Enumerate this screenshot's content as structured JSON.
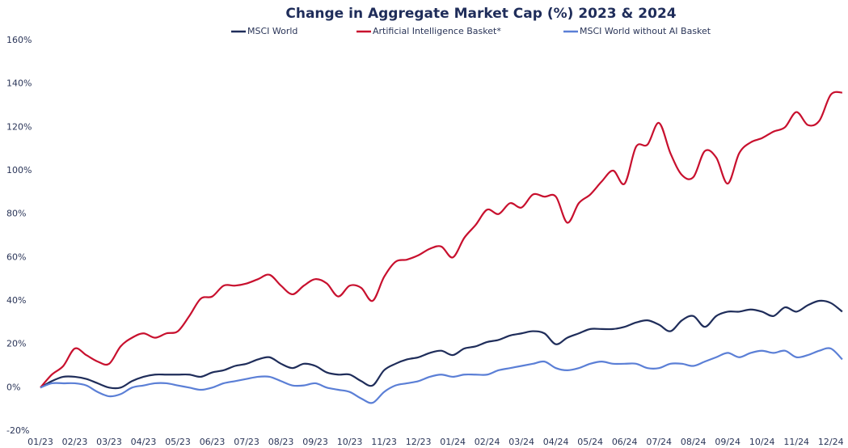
{
  "chart_data": {
    "type": "line",
    "title": "Change in Aggregate Market Cap (%) 2023 & 2024",
    "categories": [
      "01/23",
      null,
      null,
      "02/23",
      null,
      null,
      "03/23",
      null,
      null,
      "04/23",
      null,
      null,
      "05/23",
      null,
      null,
      "06/23",
      null,
      null,
      "07/23",
      null,
      null,
      "08/23",
      null,
      null,
      "09/23",
      null,
      null,
      "10/23",
      null,
      null,
      "11/23",
      null,
      null,
      "12/23",
      null,
      null,
      "01/24",
      null,
      null,
      "02/24",
      null,
      null,
      "03/24",
      null,
      null,
      "04/24",
      null,
      null,
      "05/24",
      null,
      null,
      "06/24",
      null,
      null,
      "07/24",
      null,
      null,
      "08/24",
      null,
      null,
      "09/24",
      null,
      null,
      "10/24",
      null,
      null,
      "11/24",
      null,
      null,
      "12/24",
      null
    ],
    "series": [
      {
        "name": "MSCI World",
        "color": "#1f2d5a",
        "values": [
          0,
          3,
          5,
          5,
          4,
          2,
          0,
          0,
          3,
          5,
          6,
          6,
          6,
          6,
          5,
          7,
          8,
          10,
          11,
          13,
          14,
          11,
          9,
          11,
          10,
          7,
          6,
          6,
          3,
          1,
          8,
          11,
          13,
          14,
          16,
          17,
          15,
          18,
          19,
          21,
          22,
          24,
          25,
          26,
          25,
          20,
          23,
          25,
          27,
          27,
          27,
          28,
          30,
          31,
          29,
          26,
          31,
          33,
          28,
          33,
          35,
          35,
          36,
          35,
          33,
          37,
          35,
          38,
          40,
          39,
          35
        ]
      },
      {
        "name": "Artificial Intelligence Basket*",
        "color": "#c8102e",
        "values": [
          0,
          6,
          10,
          18,
          15,
          12,
          11,
          19,
          23,
          25,
          23,
          25,
          26,
          33,
          41,
          42,
          47,
          47,
          48,
          50,
          52,
          47,
          43,
          47,
          50,
          48,
          42,
          47,
          46,
          40,
          51,
          58,
          59,
          61,
          64,
          65,
          60,
          69,
          75,
          82,
          80,
          85,
          83,
          89,
          88,
          88,
          76,
          85,
          89,
          95,
          100,
          94,
          111,
          112,
          122,
          108,
          98,
          97,
          109,
          106,
          94,
          108,
          113,
          115,
          118,
          120,
          127,
          121,
          123,
          135,
          136
        ]
      },
      {
        "name": "MSCI World without AI Basket",
        "color": "#5b7fd6",
        "values": [
          0,
          2,
          2,
          2,
          1,
          -2,
          -4,
          -3,
          0,
          1,
          2,
          2,
          1,
          0,
          -1,
          0,
          2,
          3,
          4,
          5,
          5,
          3,
          1,
          1,
          2,
          0,
          -1,
          -2,
          -5,
          -7,
          -2,
          1,
          2,
          3,
          5,
          6,
          5,
          6,
          6,
          6,
          8,
          9,
          10,
          11,
          12,
          9,
          8,
          9,
          11,
          12,
          11,
          11,
          11,
          9,
          9,
          11,
          11,
          10,
          12,
          14,
          16,
          14,
          16,
          17,
          16,
          17,
          14,
          15,
          17,
          18,
          13
        ]
      }
    ],
    "ylim": [
      -20,
      160
    ],
    "yticks": [
      {
        "value": -20,
        "label": "-20%"
      },
      {
        "value": 0,
        "label": "0%"
      },
      {
        "value": 20,
        "label": "20%"
      },
      {
        "value": 40,
        "label": "40%"
      },
      {
        "value": 60,
        "label": "60%"
      },
      {
        "value": 80,
        "label": "80%"
      },
      {
        "value": 100,
        "label": "100%"
      },
      {
        "value": 120,
        "label": "120%"
      },
      {
        "value": 140,
        "label": "140%"
      },
      {
        "value": 160,
        "label": "160%"
      }
    ]
  }
}
